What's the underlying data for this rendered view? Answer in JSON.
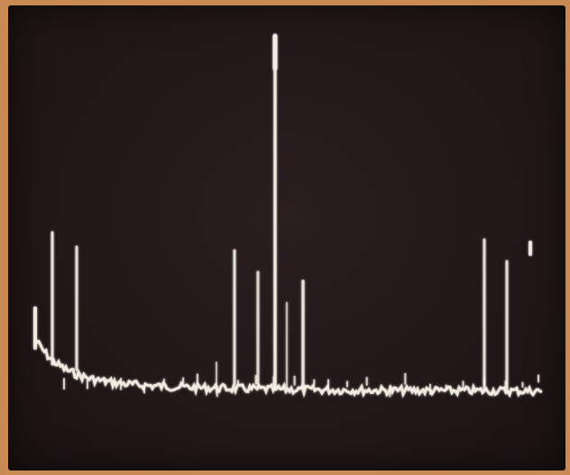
{
  "photo": {
    "subject": "oscilloscope-trace",
    "trace_color": "#f4efe6",
    "screen_color": "#221819",
    "border_color": "#c98a55"
  }
}
